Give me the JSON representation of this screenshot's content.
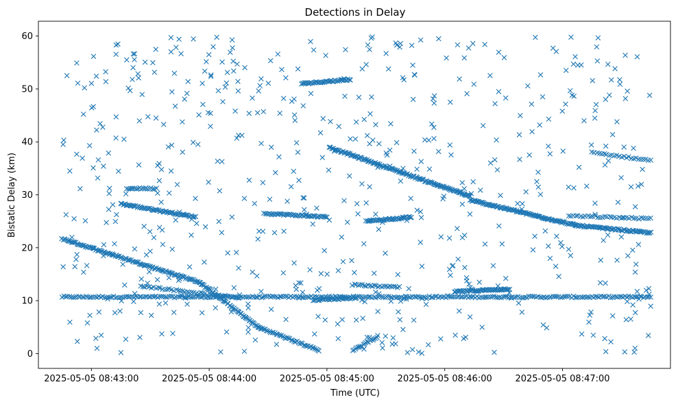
{
  "chart_data": {
    "type": "scatter",
    "title": "Detections in Delay",
    "xlabel": "Time (UTC)",
    "ylabel": "Bistatic Delay (km)",
    "marker": "x",
    "color": "#1f77b4",
    "grid": false,
    "x_start": "2025-05-05 08:42:45",
    "x_end": "2025-05-05 08:47:45",
    "xlim_seconds": [
      -12,
      310
    ],
    "ylim": [
      -2.8,
      62.8
    ],
    "x_ticks": [
      {
        "label": "2025-05-05 08:43:00",
        "seconds": 15
      },
      {
        "label": "2025-05-05 08:44:00",
        "seconds": 75
      },
      {
        "label": "2025-05-05 08:45:00",
        "seconds": 135
      },
      {
        "label": "2025-05-05 08:46:00",
        "seconds": 195
      },
      {
        "label": "2025-05-05 08:47:00",
        "seconds": 255
      }
    ],
    "y_ticks": [
      0,
      10,
      20,
      30,
      40,
      50,
      60
    ],
    "tracks": [
      {
        "start_s": 0,
        "end_s": 300,
        "delay_start_km": 10.7,
        "delay_end_km": 10.7,
        "points": 320
      },
      {
        "start_s": 0,
        "end_s": 70,
        "delay_start_km": 21.7,
        "delay_end_km": 13.5,
        "points": 120
      },
      {
        "start_s": 70,
        "end_s": 100,
        "delay_start_km": 13.5,
        "delay_end_km": 5.0,
        "points": 60
      },
      {
        "start_s": 100,
        "end_s": 131,
        "delay_start_km": 5.0,
        "delay_end_km": 0.6,
        "points": 45
      },
      {
        "start_s": 30,
        "end_s": 68,
        "delay_start_km": 28.3,
        "delay_end_km": 25.8,
        "points": 70
      },
      {
        "start_s": 40,
        "end_s": 90,
        "delay_start_km": 12.8,
        "delay_end_km": 10.5,
        "points": 45
      },
      {
        "start_s": 33,
        "end_s": 47,
        "delay_start_km": 31.2,
        "delay_end_km": 31.2,
        "points": 18
      },
      {
        "start_s": 103,
        "end_s": 135,
        "delay_start_km": 26.5,
        "delay_end_km": 25.8,
        "points": 50
      },
      {
        "start_s": 122,
        "end_s": 147,
        "delay_start_km": 51.0,
        "delay_end_km": 51.8,
        "points": 45
      },
      {
        "start_s": 136,
        "end_s": 208,
        "delay_start_km": 39.0,
        "delay_end_km": 29.7,
        "points": 150
      },
      {
        "start_s": 208,
        "end_s": 262,
        "delay_start_km": 29.0,
        "delay_end_km": 24.2,
        "points": 110
      },
      {
        "start_s": 262,
        "end_s": 300,
        "delay_start_km": 24.2,
        "delay_end_km": 22.8,
        "points": 70
      },
      {
        "start_s": 155,
        "end_s": 178,
        "delay_start_km": 25.0,
        "delay_end_km": 25.8,
        "points": 45
      },
      {
        "start_s": 148,
        "end_s": 161,
        "delay_start_km": 0.5,
        "delay_end_km": 3.3,
        "points": 20
      },
      {
        "start_s": 148,
        "end_s": 172,
        "delay_start_km": 13.0,
        "delay_end_km": 12.5,
        "points": 25
      },
      {
        "start_s": 200,
        "end_s": 228,
        "delay_start_km": 11.7,
        "delay_end_km": 12.2,
        "points": 55
      },
      {
        "start_s": 128,
        "end_s": 150,
        "delay_start_km": 10.1,
        "delay_end_km": 10.5,
        "points": 30
      },
      {
        "start_s": 258,
        "end_s": 300,
        "delay_start_km": 26.0,
        "delay_end_km": 25.5,
        "points": 35
      },
      {
        "start_s": 270,
        "end_s": 300,
        "delay_start_km": 38.0,
        "delay_end_km": 36.5,
        "points": 25
      }
    ],
    "clutter": {
      "count": 620,
      "start_s": 0,
      "end_s": 300,
      "delay_min_km": 0,
      "delay_max_km": 60
    }
  }
}
